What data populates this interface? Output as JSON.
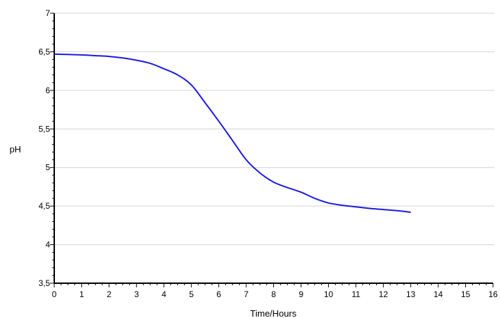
{
  "chart_data": {
    "type": "line",
    "xlabel": "Time/Hours",
    "ylabel": "pH",
    "xlim": [
      0,
      16
    ],
    "ylim": [
      3.5,
      7
    ],
    "x_ticks": [
      0,
      1,
      2,
      3,
      4,
      5,
      6,
      7,
      8,
      9,
      10,
      11,
      12,
      13,
      14,
      15,
      16
    ],
    "x_tick_labels": [
      "0",
      "1",
      "2",
      "3",
      "4",
      "5",
      "6",
      "7",
      "8",
      "9",
      "10",
      "11",
      "12",
      "13",
      "14",
      "15",
      "16"
    ],
    "y_ticks": [
      3.5,
      4,
      4.5,
      5,
      5.5,
      6,
      6.5,
      7
    ],
    "y_tick_labels": [
      "3,5",
      "4",
      "4,5",
      "5",
      "5,5",
      "6",
      "6,5",
      "7"
    ],
    "grid": "horizontal",
    "series": [
      {
        "color": "#1a1adf",
        "x": [
          0,
          0.5,
          1,
          1.5,
          2,
          2.5,
          3,
          3.5,
          4,
          4.5,
          5,
          5.5,
          6,
          6.5,
          7,
          7.5,
          8,
          8.5,
          9,
          9.5,
          10,
          10.5,
          11,
          11.5,
          12,
          12.5,
          13
        ],
        "y": [
          6.47,
          6.465,
          6.46,
          6.45,
          6.44,
          6.42,
          6.39,
          6.35,
          6.28,
          6.2,
          6.07,
          5.84,
          5.6,
          5.35,
          5.1,
          4.93,
          4.81,
          4.74,
          4.68,
          4.6,
          4.54,
          4.51,
          4.49,
          4.47,
          4.455,
          4.44,
          4.42
        ]
      }
    ]
  }
}
